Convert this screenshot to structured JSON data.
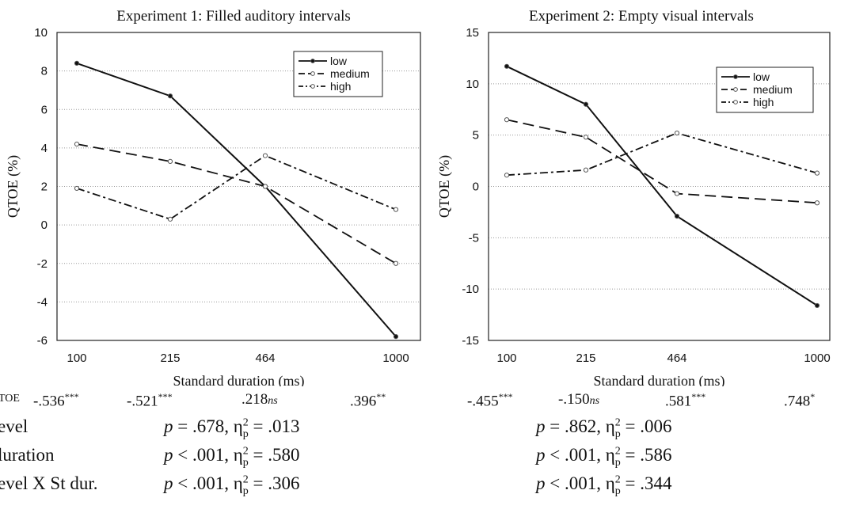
{
  "chart_data": [
    {
      "type": "line",
      "title": "Experiment 1: Filled auditory intervals",
      "xlabel": "Standard duration (ms)",
      "ylabel": "QTOE (%)",
      "categories": [
        "100",
        "215",
        "464",
        "1000"
      ],
      "ylim": [
        -6,
        10
      ],
      "yticks": [
        "-6",
        "-4",
        "-2",
        "0",
        "2",
        "4",
        "6",
        "8",
        "10"
      ],
      "grid": true,
      "legend": "top-right",
      "series": [
        {
          "name": "low",
          "values": [
            8.4,
            6.7,
            2.0,
            -5.8
          ]
        },
        {
          "name": "medium",
          "values": [
            4.2,
            3.3,
            2.0,
            -2.0
          ]
        },
        {
          "name": "high",
          "values": [
            1.9,
            0.3,
            3.6,
            0.8
          ]
        }
      ]
    },
    {
      "type": "line",
      "title": "Experiment 2: Empty visual intervals",
      "xlabel": "Standard duration (ms)",
      "ylabel": "QTOE (%)",
      "categories": [
        "100",
        "215",
        "464",
        "1000"
      ],
      "ylim": [
        -15,
        15
      ],
      "yticks": [
        "-15",
        "-10",
        "-5",
        "0",
        "5",
        "10",
        "15"
      ],
      "grid": true,
      "legend": "top-right",
      "series": [
        {
          "name": "low",
          "values": [
            11.7,
            8.0,
            -2.9,
            -11.6
          ]
        },
        {
          "name": "medium",
          "values": [
            6.5,
            4.8,
            -0.7,
            -1.6
          ]
        },
        {
          "name": "high",
          "values": [
            1.1,
            1.6,
            5.2,
            1.3
          ]
        }
      ]
    }
  ],
  "stats": {
    "corr_label": "TOE",
    "exp1_corr": [
      {
        "v": "-.536",
        "sig": "***"
      },
      {
        "v": "-.521",
        "sig": "***"
      },
      {
        "v": ".218",
        "sig": "ns"
      },
      {
        "v": ".396",
        "sig": "**"
      }
    ],
    "exp2_corr": [
      {
        "v": "-.455",
        "sig": "***"
      },
      {
        "v": "-.150",
        "sig": "ns"
      },
      {
        "v": ".581",
        "sig": "***"
      },
      {
        "v": ".748",
        "sig": "*"
      }
    ],
    "rows": [
      {
        "label": "evel",
        "exp1": {
          "p": " = .678, ",
          "eta": " = .013"
        },
        "exp2": {
          "p": " = .862, ",
          "eta": " = .006"
        }
      },
      {
        "label": "luration",
        "exp1": {
          "p": " < .001, ",
          "eta": " = .580"
        },
        "exp2": {
          "p": " < .001, ",
          "eta": " = .586"
        }
      },
      {
        "label": "evel X St dur.",
        "exp1": {
          "p": " < .001, ",
          "eta": " = .306"
        },
        "exp2": {
          "p": " < .001, ",
          "eta": " = .344"
        }
      }
    ],
    "p_symbol": "p",
    "eta_symbol": "η",
    "eta_sup": "2",
    "eta_sub": "p"
  }
}
